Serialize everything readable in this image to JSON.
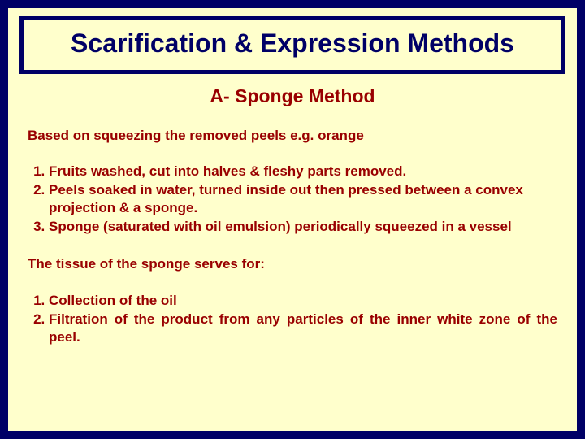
{
  "slide": {
    "background_color": "#ffffcc",
    "outer_border_color": "#000066",
    "outer_border_width": 10,
    "title_border_color": "#000066",
    "title_border_width": 5,
    "title_color": "#000066",
    "body_text_color": "#990000",
    "title_fontsize": 32,
    "subtitle_fontsize": 23,
    "body_fontsize": 17,
    "title": "Scarification & Expression Methods",
    "subtitle": "A- Sponge Method",
    "intro": "Based on squeezing the removed peels e.g. orange",
    "steps": [
      "Fruits washed, cut into halves & fleshy parts removed.",
      "Peels soaked in water, turned inside out then pressed between a convex projection & a sponge.",
      "Sponge (saturated with oil emulsion) periodically squeezed in a vessel"
    ],
    "serves_intro": "The tissue of the sponge serves for:",
    "serves": [
      "Collection of the oil",
      "Filtration of the product from any particles of the inner white zone of the peel."
    ]
  }
}
